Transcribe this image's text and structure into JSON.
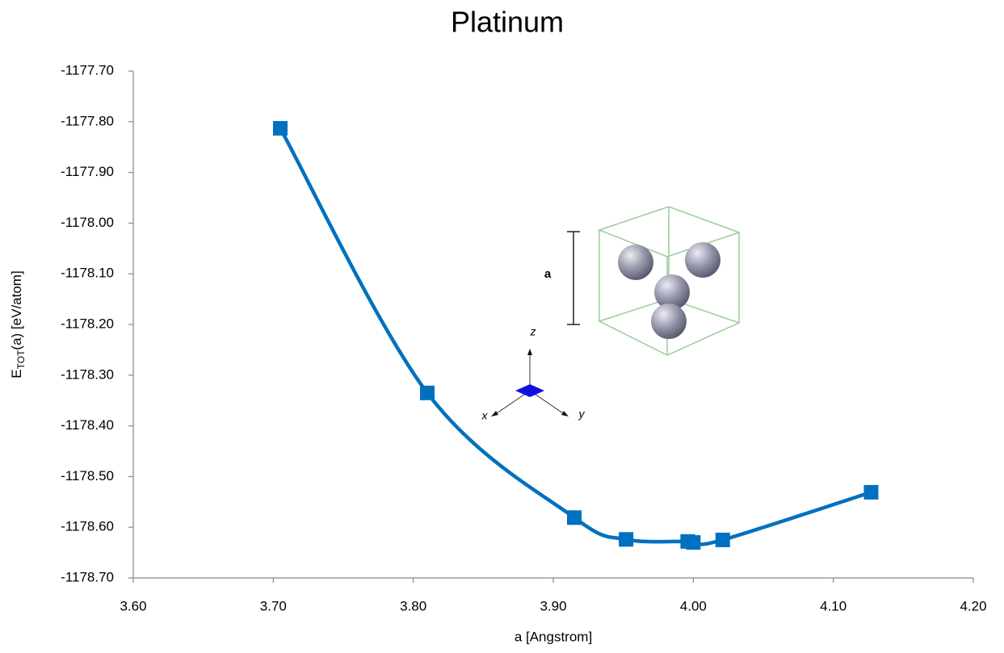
{
  "chart_data": {
    "type": "line",
    "title": "Platinum",
    "xlabel": "a [Angstrom]",
    "ylabel": {
      "main": "E",
      "sub": "TOT",
      "rest": "(a) [eV/atom]"
    },
    "x": [
      3.705,
      3.81,
      3.915,
      3.952,
      3.996,
      4.0,
      4.021,
      4.127
    ],
    "series": [
      {
        "name": "Platinum",
        "color": "#0070c0",
        "values": [
          -1177.813,
          -1178.335,
          -1178.581,
          -1178.624,
          -1178.628,
          -1178.63,
          -1178.625,
          -1178.531
        ]
      }
    ],
    "xlim": [
      3.6,
      4.2
    ],
    "xticks": [
      {
        "value": 3.6,
        "label": "3.60"
      },
      {
        "value": 3.7,
        "label": "3.70"
      },
      {
        "value": 3.8,
        "label": "3.80"
      },
      {
        "value": 3.9,
        "label": "3.90"
      },
      {
        "value": 4.0,
        "label": "4.00"
      },
      {
        "value": 4.1,
        "label": "4.10"
      },
      {
        "value": 4.2,
        "label": "4.20"
      }
    ],
    "ylim": [
      -1178.7,
      -1177.7
    ],
    "yticks": [
      {
        "value": -1178.7,
        "label": "-1178.70"
      },
      {
        "value": -1178.6,
        "label": "-1178.60"
      },
      {
        "value": -1178.5,
        "label": "-1178.50"
      },
      {
        "value": -1178.4,
        "label": "-1178.40"
      },
      {
        "value": -1178.3,
        "label": "-1178.30"
      },
      {
        "value": -1178.2,
        "label": "-1178.20"
      },
      {
        "value": -1178.1,
        "label": "-1178.10"
      },
      {
        "value": -1178.0,
        "label": "-1178.00"
      },
      {
        "value": -1177.9,
        "label": "-1177.90"
      },
      {
        "value": -1177.8,
        "label": "-1177.80"
      },
      {
        "value": -1177.7,
        "label": "-1177.70"
      }
    ],
    "grid": false,
    "annotations": [
      "a",
      "z",
      "x",
      "y"
    ]
  }
}
